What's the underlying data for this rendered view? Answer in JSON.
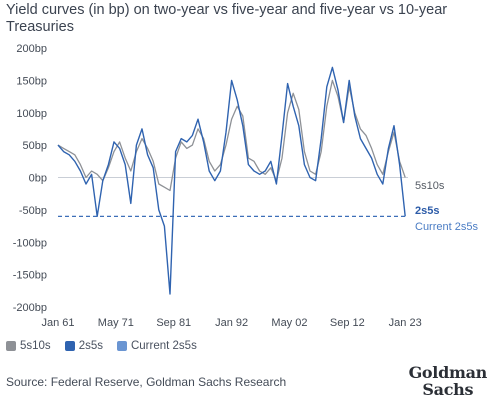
{
  "title": "Yield curves (in bp) on two-year vs five-year and five-year vs 10-year Treasuries",
  "source": "Source: Federal Reserve, Goldman Sachs Research",
  "logo": "Goldman Sachs",
  "legend": [
    {
      "label": "5s10s",
      "color": "#8e9196"
    },
    {
      "label": "2s5s",
      "color": "#2f63b0"
    },
    {
      "label": "Current 2s5s",
      "color": "#6a95d2"
    }
  ],
  "end_labels": {
    "s5s10s": "5s10s",
    "s2s5s": "2s5s",
    "current": "Current 2s5s"
  },
  "chart_data": {
    "type": "line",
    "title": "Yield curves (in bp) on two-year vs five-year and five-year vs 10-year Treasuries",
    "xlabel": "",
    "ylabel": "",
    "x_ticks": [
      "Jan 61",
      "May 71",
      "Sep 81",
      "Jan 92",
      "May 02",
      "Sep 12",
      "Jan 23"
    ],
    "y_ticks": [
      "200bp",
      "150bp",
      "100bp",
      "50bp",
      "0bp",
      "-50bp",
      "-100bp",
      "-150bp",
      "-200bp"
    ],
    "ylim": [
      -200,
      200
    ],
    "xlim": [
      1961.0,
      2023.5
    ],
    "grid": false,
    "legend_position": "bottom-left",
    "reference_line": {
      "name": "Current 2s5s",
      "y": -60,
      "style": "dashed"
    },
    "series": [
      {
        "name": "5s10s",
        "x": [
          1961,
          1962,
          1963,
          1964,
          1965,
          1966,
          1967,
          1968,
          1969,
          1970,
          1971,
          1972,
          1973,
          1974,
          1975,
          1976,
          1977,
          1978,
          1979,
          1980,
          1981,
          1982,
          1983,
          1984,
          1985,
          1986,
          1987,
          1988,
          1989,
          1990,
          1991,
          1992,
          1993,
          1994,
          1995,
          1996,
          1997,
          1998,
          1999,
          2000,
          2001,
          2002,
          2003,
          2004,
          2005,
          2006,
          2007,
          2008,
          2009,
          2010,
          2011,
          2012,
          2013,
          2014,
          2015,
          2016,
          2017,
          2018,
          2019,
          2020,
          2021,
          2022,
          2023
        ],
        "values": [
          50,
          45,
          40,
          35,
          20,
          0,
          10,
          5,
          -5,
          15,
          40,
          55,
          30,
          10,
          40,
          60,
          45,
          25,
          -10,
          -15,
          -20,
          30,
          55,
          45,
          50,
          75,
          60,
          25,
          10,
          20,
          50,
          90,
          110,
          95,
          30,
          25,
          10,
          5,
          15,
          -5,
          30,
          100,
          130,
          105,
          40,
          10,
          5,
          40,
          110,
          150,
          125,
          85,
          140,
          100,
          75,
          65,
          45,
          20,
          5,
          40,
          70,
          25,
          0
        ]
      },
      {
        "name": "2s5s",
        "x": [
          1961,
          1962,
          1963,
          1964,
          1965,
          1966,
          1967,
          1968,
          1969,
          1970,
          1971,
          1972,
          1973,
          1974,
          1975,
          1976,
          1977,
          1978,
          1979,
          1980,
          1981,
          1982,
          1983,
          1984,
          1985,
          1986,
          1987,
          1988,
          1989,
          1990,
          1991,
          1992,
          1993,
          1994,
          1995,
          1996,
          1997,
          1998,
          1999,
          2000,
          2001,
          2002,
          2003,
          2004,
          2005,
          2006,
          2007,
          2008,
          2009,
          2010,
          2011,
          2012,
          2013,
          2014,
          2015,
          2016,
          2017,
          2018,
          2019,
          2020,
          2021,
          2022,
          2023
        ],
        "values": [
          50,
          40,
          35,
          25,
          10,
          -10,
          5,
          -60,
          -5,
          20,
          55,
          45,
          20,
          -40,
          50,
          75,
          35,
          15,
          -50,
          -75,
          -180,
          40,
          60,
          55,
          65,
          90,
          55,
          10,
          -5,
          10,
          70,
          150,
          120,
          80,
          20,
          10,
          5,
          10,
          25,
          -10,
          65,
          145,
          110,
          80,
          20,
          0,
          -5,
          60,
          140,
          170,
          135,
          85,
          150,
          95,
          60,
          45,
          30,
          5,
          -10,
          45,
          80,
          20,
          -60
        ]
      }
    ]
  }
}
